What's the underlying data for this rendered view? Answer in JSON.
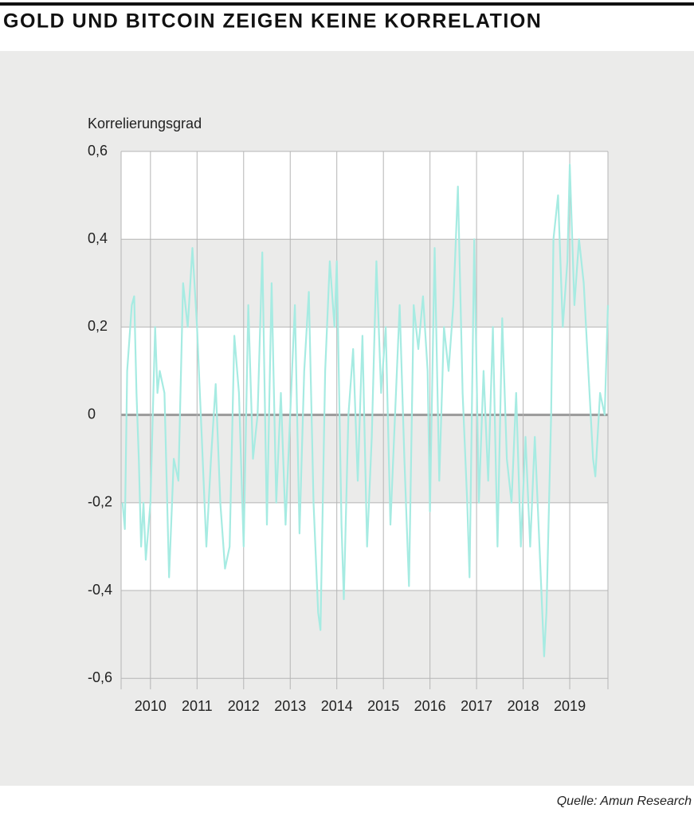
{
  "chart_data": {
    "type": "line",
    "title": "GOLD UND BITCOIN ZEIGEN KEINE KORRELATION",
    "y_label": "Korrelierungsgrad",
    "source": "Quelle: Amun Research",
    "color": "#a6ebe2",
    "grid": true,
    "xlim": [
      2009.37,
      2019.82
    ],
    "xticks": [
      2010,
      2011,
      2012,
      2013,
      2014,
      2015,
      2016,
      2017,
      2018,
      2019
    ],
    "ylim": [
      -0.625,
      0.6
    ],
    "yticks": [
      {
        "value": 0.6,
        "label": "0,6"
      },
      {
        "value": 0.4,
        "label": "0,4"
      },
      {
        "value": 0.2,
        "label": "0,2"
      },
      0,
      {
        "value": -0.2,
        "label": "-0,2"
      },
      {
        "value": -0.4,
        "label": "-0,4"
      },
      {
        "value": -0.6,
        "label": "-0,6"
      }
    ],
    "x": [
      2009.4,
      2009.45,
      2009.5,
      2009.6,
      2009.65,
      2009.7,
      2009.75,
      2009.8,
      2009.85,
      2009.9,
      2010.0,
      2010.1,
      2010.15,
      2010.2,
      2010.3,
      2010.4,
      2010.5,
      2010.6,
      2010.7,
      2010.8,
      2010.9,
      2011.0,
      2011.1,
      2011.2,
      2011.3,
      2011.4,
      2011.5,
      2011.6,
      2011.7,
      2011.8,
      2011.9,
      2012.0,
      2012.1,
      2012.2,
      2012.3,
      2012.4,
      2012.5,
      2012.6,
      2012.7,
      2012.8,
      2012.9,
      2013.0,
      2013.1,
      2013.2,
      2013.3,
      2013.4,
      2013.5,
      2013.6,
      2013.65,
      2013.75,
      2013.85,
      2013.95,
      2014.0,
      2014.1,
      2014.15,
      2014.25,
      2014.35,
      2014.45,
      2014.55,
      2014.65,
      2014.75,
      2014.85,
      2014.95,
      2015.05,
      2015.15,
      2015.25,
      2015.35,
      2015.45,
      2015.55,
      2015.65,
      2015.75,
      2015.85,
      2015.95,
      2016.0,
      2016.1,
      2016.2,
      2016.3,
      2016.4,
      2016.5,
      2016.6,
      2016.7,
      2016.8,
      2016.85,
      2016.95,
      2017.05,
      2017.15,
      2017.25,
      2017.35,
      2017.45,
      2017.55,
      2017.65,
      2017.75,
      2017.85,
      2017.95,
      2018.05,
      2018.15,
      2018.25,
      2018.35,
      2018.45,
      2018.5,
      2018.6,
      2018.65,
      2018.75,
      2018.85,
      2018.95,
      2019.0,
      2019.1,
      2019.2,
      2019.3,
      2019.4,
      2019.5,
      2019.55,
      2019.65,
      2019.75,
      2019.82
    ],
    "values": [
      -0.2,
      -0.26,
      0.1,
      0.25,
      0.27,
      0.05,
      -0.1,
      -0.3,
      -0.2,
      -0.33,
      -0.2,
      0.2,
      0.05,
      0.1,
      0.05,
      -0.37,
      -0.1,
      -0.15,
      0.3,
      0.2,
      0.38,
      0.2,
      -0.05,
      -0.3,
      -0.1,
      0.07,
      -0.2,
      -0.35,
      -0.3,
      0.18,
      0.05,
      -0.3,
      0.25,
      -0.1,
      0.0,
      0.37,
      -0.25,
      0.3,
      -0.2,
      0.05,
      -0.25,
      0.0,
      0.25,
      -0.27,
      0.1,
      0.28,
      -0.2,
      -0.45,
      -0.49,
      0.1,
      0.35,
      0.2,
      0.35,
      -0.25,
      -0.42,
      0.0,
      0.15,
      -0.15,
      0.18,
      -0.3,
      -0.05,
      0.35,
      0.05,
      0.2,
      -0.25,
      0.0,
      0.25,
      -0.1,
      -0.39,
      0.25,
      0.15,
      0.27,
      0.1,
      -0.22,
      0.38,
      -0.15,
      0.2,
      0.1,
      0.25,
      0.52,
      0.05,
      -0.2,
      -0.37,
      0.4,
      -0.2,
      0.1,
      -0.15,
      0.2,
      -0.3,
      0.22,
      -0.1,
      -0.2,
      0.05,
      -0.3,
      -0.05,
      -0.3,
      -0.05,
      -0.3,
      -0.55,
      -0.45,
      0.0,
      0.4,
      0.5,
      0.2,
      0.35,
      0.57,
      0.25,
      0.4,
      0.3,
      0.1,
      -0.1,
      -0.14,
      0.05,
      0.0,
      0.25
    ]
  }
}
